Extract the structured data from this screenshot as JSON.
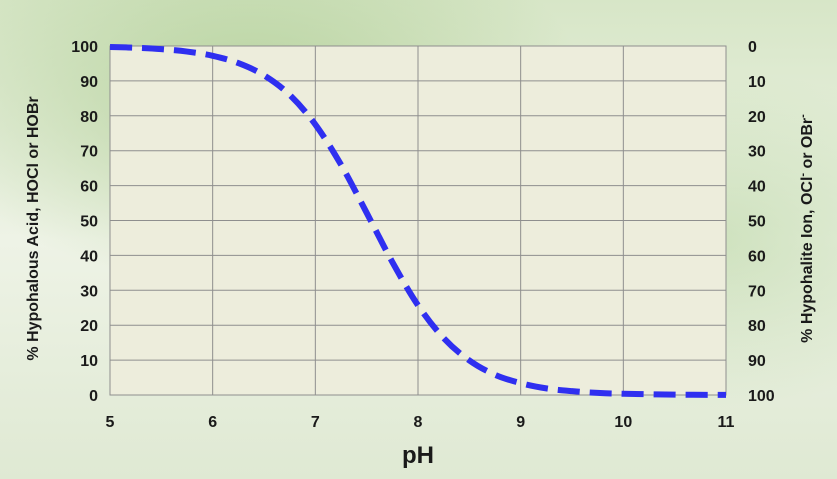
{
  "chart_data": {
    "type": "line",
    "xlabel": "pH",
    "ylabel_left": "% Hypohalous Acid, HOCl or HOBr",
    "ylabel_right_parts": [
      "% Hypohalite Ion, OCl",
      "-",
      " or OBr",
      "-"
    ],
    "xlim": [
      5,
      11
    ],
    "ylim_left": [
      0,
      100
    ],
    "ylim_right": [
      100,
      0
    ],
    "x_ticks": [
      "5",
      "6",
      "7",
      "8",
      "9",
      "10",
      "11"
    ],
    "y_ticks_left": [
      "0",
      "10",
      "20",
      "30",
      "40",
      "50",
      "60",
      "70",
      "80",
      "90",
      "100"
    ],
    "y_ticks_right": [
      "100",
      "90",
      "80",
      "70",
      "60",
      "50",
      "40",
      "30",
      "20",
      "10",
      "0"
    ],
    "grid": true,
    "series": [
      {
        "color": "#2f2ff0",
        "line_style": "dashed",
        "x": [
          5.0,
          5.25,
          5.5,
          5.75,
          6.0,
          6.25,
          6.5,
          6.75,
          7.0,
          7.25,
          7.5,
          7.75,
          8.0,
          8.25,
          8.5,
          8.75,
          9.0,
          9.25,
          9.5,
          9.75,
          10.0,
          10.5,
          11.0
        ],
        "values": [
          99.7,
          99.5,
          99.1,
          98.4,
          97.2,
          95.1,
          91.6,
          86.0,
          77.5,
          66.0,
          52.2,
          38.1,
          25.7,
          16.3,
          9.9,
          5.8,
          3.4,
          1.9,
          1.1,
          0.6,
          0.35,
          0.1,
          0.03
        ]
      }
    ]
  }
}
